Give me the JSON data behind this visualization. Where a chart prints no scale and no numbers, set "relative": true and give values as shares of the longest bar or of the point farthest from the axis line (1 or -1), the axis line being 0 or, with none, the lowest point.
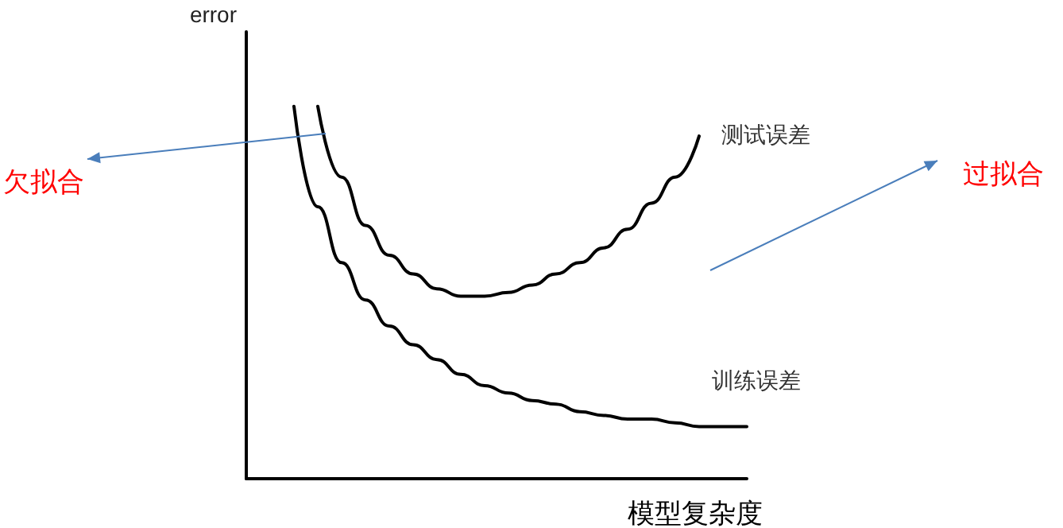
{
  "chart_data": {
    "type": "line",
    "relative": true,
    "ylabel": "error",
    "xlabel": "模型复杂度",
    "categories": [
      null,
      null,
      null,
      null,
      null,
      null,
      null,
      null,
      null,
      null,
      null,
      null,
      null,
      null,
      null,
      null,
      null,
      null,
      null,
      null,
      null,
      null
    ],
    "series": [
      {
        "name": "测试误差",
        "color": "#000000",
        "values": [
          null,
          null,
          null,
          1,
          0.81,
          0.68,
          0.6,
          0.55,
          0.51,
          0.49,
          0.49,
          0.5,
          0.52,
          0.55,
          0.58,
          0.62,
          0.67,
          0.74,
          0.81,
          0.92,
          null,
          null
        ]
      },
      {
        "name": "训练误差",
        "color": "#000000",
        "values": [
          null,
          null,
          1,
          0.73,
          0.58,
          0.48,
          0.41,
          0.36,
          0.32,
          0.28,
          0.25,
          0.23,
          0.21,
          0.2,
          0.18,
          0.17,
          0.16,
          0.16,
          0.15,
          0.14,
          0.14,
          0.14
        ]
      }
    ],
    "annotations": [
      "欠拟合",
      "过拟合"
    ],
    "legend": false,
    "grid": false,
    "line_style": "solid"
  }
}
